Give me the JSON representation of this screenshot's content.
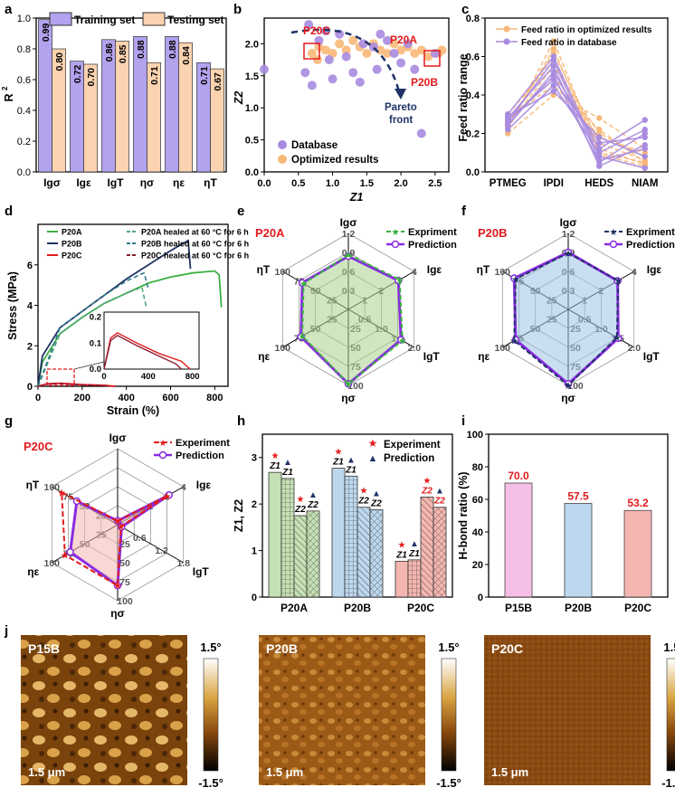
{
  "colors": {
    "purple": "#9370DB",
    "orange": "#F4B183",
    "navy": "#1F3366",
    "red": "#E31A1C",
    "green": "#3CB043",
    "light_green": "#C5E0B4",
    "light_blue": "#BDD7EE",
    "light_red": "#F4B6B0",
    "pink": "#F6BFE6"
  },
  "panel_labels": [
    "a",
    "b",
    "c",
    "d",
    "e",
    "f",
    "g",
    "h",
    "i",
    "j"
  ],
  "chart_data": [
    {
      "panel": "a",
      "type": "bar",
      "ylabel": "R",
      "ylabel_sup": "2",
      "categories": [
        "Igσ",
        "Igε",
        "IgT",
        "ησ",
        "ηε",
        "ηT"
      ],
      "category_italic": [
        "σ",
        "ε",
        "T",
        "σ",
        "ε",
        "T"
      ],
      "category_prefix": [
        "Ig",
        "Ig",
        "Ig",
        "η",
        "η",
        "η"
      ],
      "series": [
        {
          "name": "Training set",
          "values": [
            0.99,
            0.72,
            0.86,
            0.88,
            0.88,
            0.71
          ]
        },
        {
          "name": "Testing set",
          "values": [
            0.8,
            0.7,
            0.85,
            0.71,
            0.84,
            0.67
          ]
        }
      ],
      "value_labels": [
        [
          "0.99",
          "0.72",
          "0.86",
          "0.88",
          "0.88",
          "0.71"
        ],
        [
          "0.80",
          "0.70",
          "0.85",
          "0.71",
          "0.84",
          "0.67"
        ]
      ],
      "ylim": [
        0,
        1.0
      ],
      "yticks": [
        0,
        0.2,
        0.4,
        0.6,
        0.8,
        1.0
      ],
      "ytick_labels": [
        "0.0",
        "0.2",
        "0.4",
        "0.6",
        "0.8",
        "1.0"
      ]
    },
    {
      "panel": "b",
      "type": "scatter",
      "xlabel": "Z1",
      "ylabel": "Z2",
      "xlim": [
        0,
        2.7
      ],
      "ylim": [
        0,
        2.4
      ],
      "xticks": [
        "0.0",
        "0.5",
        "1.0",
        "1.5",
        "2.0",
        "2.5"
      ],
      "yticks": [
        "0.0",
        "0.5",
        "1.0",
        "1.5",
        "2.0"
      ],
      "series": [
        {
          "name": "Database",
          "points": [
            [
              0.0,
              1.6
            ],
            [
              0.6,
              1.55
            ],
            [
              0.7,
              1.35
            ],
            [
              0.8,
              2.05
            ],
            [
              0.65,
              2.3
            ],
            [
              0.9,
              2.2
            ],
            [
              0.95,
              1.75
            ],
            [
              1.0,
              1.45
            ],
            [
              1.1,
              2.15
            ],
            [
              1.2,
              1.8
            ],
            [
              1.3,
              1.55
            ],
            [
              1.4,
              1.4
            ],
            [
              1.45,
              2.0
            ],
            [
              1.6,
              1.95
            ],
            [
              1.65,
              1.6
            ],
            [
              1.8,
              2.05
            ],
            [
              1.9,
              1.85
            ],
            [
              2.0,
              1.7
            ],
            [
              2.1,
              2.0
            ],
            [
              2.2,
              1.6
            ],
            [
              2.3,
              0.6
            ],
            [
              2.5,
              1.85
            ],
            [
              1.7,
              2.15
            ]
          ]
        },
        {
          "name": "Optimized results",
          "points": [
            [
              0.7,
              1.85
            ],
            [
              0.78,
              1.75
            ],
            [
              0.8,
              1.95
            ],
            [
              0.9,
              1.9
            ],
            [
              1.0,
              1.85
            ],
            [
              1.1,
              2.0
            ],
            [
              1.2,
              1.9
            ],
            [
              1.3,
              2.05
            ],
            [
              1.4,
              1.95
            ],
            [
              1.5,
              1.85
            ],
            [
              1.6,
              2.0
            ],
            [
              1.7,
              1.9
            ],
            [
              1.8,
              1.85
            ],
            [
              1.9,
              2.0
            ],
            [
              2.0,
              1.9
            ],
            [
              2.1,
              1.95
            ],
            [
              2.2,
              1.85
            ],
            [
              2.3,
              1.9
            ],
            [
              2.4,
              1.8
            ],
            [
              2.55,
              1.85
            ],
            [
              2.6,
              1.9
            ]
          ]
        }
      ],
      "annotations": [
        "P20C",
        "P20A",
        "P20B",
        "Pareto",
        "front"
      ]
    },
    {
      "panel": "c",
      "type": "line",
      "ylabel": "Feed ratio range",
      "categories": [
        "PTMEG",
        "IPDI",
        "HEDS",
        "NIAM"
      ],
      "ylim": [
        0,
        0.8
      ],
      "yticks": [
        "0.0",
        "0.2",
        "0.4",
        "0.6",
        "0.8"
      ],
      "series": [
        {
          "name": "Feed ratio in optimized results",
          "lines": [
            [
              0.2,
              0.4,
              0.28,
              0.12
            ],
            [
              0.22,
              0.68,
              0.1,
              0.05
            ],
            [
              0.24,
              0.55,
              0.2,
              0.08
            ],
            [
              0.25,
              0.62,
              0.15,
              0.06
            ],
            [
              0.26,
              0.5,
              0.18,
              0.1
            ],
            [
              0.28,
              0.45,
              0.22,
              0.05
            ],
            [
              0.3,
              0.58,
              0.12,
              0.04
            ],
            [
              0.23,
              0.64,
              0.09,
              0.03
            ]
          ]
        },
        {
          "name": "Feed ratio in database",
          "lines": [
            [
              0.22,
              0.45,
              0.1,
              0.22
            ],
            [
              0.25,
              0.5,
              0.05,
              0.2
            ],
            [
              0.28,
              0.55,
              0.03,
              0.14
            ],
            [
              0.3,
              0.6,
              0.08,
              0.02
            ],
            [
              0.24,
              0.52,
              0.12,
              0.27
            ],
            [
              0.27,
              0.48,
              0.15,
              0.18
            ],
            [
              0.26,
              0.58,
              0.06,
              0.12
            ],
            [
              0.29,
              0.42,
              0.18,
              0.08
            ]
          ]
        }
      ]
    },
    {
      "panel": "d",
      "type": "line",
      "xlabel": "Strain (%)",
      "ylabel": "Stress (MPa)",
      "xlim": [
        0,
        860
      ],
      "ylim": [
        0,
        8
      ],
      "xticks": [
        "0",
        "200",
        "400",
        "600",
        "800"
      ],
      "yticks": [
        "0",
        "2",
        "4",
        "6"
      ],
      "legend": [
        "P20A",
        "P20B",
        "P20C",
        "P20A healed at 60 °C for 6 h",
        "P20B healed at 60 °C for 6 h",
        "P20C healed at 60 °C for 6 h"
      ],
      "series": [
        {
          "name": "P20A",
          "points": [
            [
              0,
              0
            ],
            [
              20,
              1.2
            ],
            [
              100,
              2.6
            ],
            [
              200,
              3.4
            ],
            [
              300,
              4.1
            ],
            [
              400,
              4.6
            ],
            [
              500,
              5.1
            ],
            [
              600,
              5.4
            ],
            [
              700,
              5.6
            ],
            [
              800,
              5.7
            ],
            [
              820,
              5.5
            ],
            [
              830,
              3.9
            ]
          ]
        },
        {
          "name": "P20B",
          "points": [
            [
              0,
              0
            ],
            [
              20,
              1.5
            ],
            [
              100,
              2.9
            ],
            [
              200,
              3.7
            ],
            [
              300,
              4.5
            ],
            [
              400,
              5.3
            ],
            [
              500,
              6.0
            ],
            [
              600,
              6.7
            ],
            [
              680,
              7.2
            ],
            [
              690,
              5.8
            ]
          ]
        },
        {
          "name": "P20C",
          "points": [
            [
              0,
              0
            ],
            [
              40,
              0.12
            ],
            [
              100,
              0.15
            ],
            [
              200,
              0.08
            ],
            [
              300,
              0.05
            ],
            [
              350,
              0
            ]
          ]
        },
        {
          "name": "P20A healed",
          "points": [
            [
              0,
              0
            ],
            [
              100,
              2.6
            ],
            [
              200,
              3.4
            ],
            [
              300,
              4.1
            ],
            [
              400,
              4.6
            ],
            [
              470,
              4.9
            ],
            [
              490,
              3.9
            ]
          ]
        },
        {
          "name": "P20B healed",
          "points": [
            [
              0,
              0
            ],
            [
              100,
              2.9
            ],
            [
              200,
              3.7
            ],
            [
              300,
              4.5
            ],
            [
              400,
              5.2
            ],
            [
              480,
              5.6
            ],
            [
              500,
              4.8
            ]
          ]
        },
        {
          "name": "P20C healed",
          "points": [
            [
              0,
              0
            ],
            [
              40,
              0.11
            ],
            [
              100,
              0.13
            ],
            [
              200,
              0.07
            ],
            [
              300,
              0.03
            ],
            [
              320,
              0
            ]
          ]
        }
      ],
      "inset": {
        "xticks": [
          "0",
          "400",
          "800"
        ],
        "yticks": [
          "0.0",
          "0.1",
          "0.2"
        ],
        "series": [
          {
            "name": "P20C",
            "points": [
              [
                0,
                0
              ],
              [
                60,
                0.12
              ],
              [
                120,
                0.14
              ],
              [
                300,
                0.1
              ],
              [
                500,
                0.06
              ],
              [
                700,
                0.03
              ],
              [
                780,
                0
              ]
            ]
          },
          {
            "name": "P20C healed",
            "points": [
              [
                0,
                0
              ],
              [
                60,
                0.11
              ],
              [
                120,
                0.13
              ],
              [
                300,
                0.09
              ],
              [
                500,
                0.05
              ],
              [
                650,
                0.02
              ],
              [
                700,
                0
              ]
            ]
          }
        ]
      }
    },
    {
      "panel": "e",
      "type": "radar",
      "title": "P20A",
      "axes": [
        "Igσ",
        "Igε",
        "IgT",
        "ησ",
        "ηε",
        "ηT"
      ],
      "legend": [
        "Expriment",
        "Prediction"
      ],
      "ring_labels": {
        "Igσ": [
          "0.3",
          "0.6",
          "0.9",
          "1.2"
        ],
        "Igε": [
          "1",
          "2",
          "3",
          "4"
        ],
        "IgT": [
          "0.5",
          "1.0",
          "1.5",
          "2.0"
        ],
        "ησ": [
          "25",
          "50",
          "75",
          "100"
        ],
        "ηε": [
          "25",
          "50",
          "75",
          "100"
        ],
        "ηT": [
          "25",
          "50",
          "75",
          "100"
        ]
      },
      "series": [
        {
          "name": "Expriment",
          "values": [
            0.72,
            0.78,
            0.82,
            0.98,
            0.7,
            0.68
          ]
        },
        {
          "name": "Prediction",
          "values": [
            0.7,
            0.76,
            0.8,
            0.98,
            0.72,
            0.7
          ]
        }
      ]
    },
    {
      "panel": "f",
      "type": "radar",
      "title": "P20B",
      "axes": [
        "Igσ",
        "Igε",
        "IgT",
        "ησ",
        "ηε",
        "ηT"
      ],
      "legend": [
        "Expriment",
        "Prediction"
      ],
      "ring_labels": {
        "Igσ": [
          "0.3",
          "0.6",
          "0.9",
          "1.2"
        ],
        "Igε": [
          "1",
          "2",
          "3",
          "4"
        ],
        "IgT": [
          "0.5",
          "1.0",
          "1.5",
          "2.0"
        ],
        "ησ": [
          "25",
          "50",
          "75",
          "100"
        ],
        "ηε": [
          "25",
          "50",
          "75",
          "100"
        ],
        "ηT": [
          "25",
          "50",
          "75",
          "100"
        ]
      },
      "series": [
        {
          "name": "Expriment",
          "values": [
            0.74,
            0.76,
            0.74,
            1.0,
            0.82,
            0.8
          ]
        },
        {
          "name": "Prediction",
          "values": [
            0.75,
            0.75,
            0.76,
            0.98,
            0.8,
            0.82
          ]
        }
      ]
    },
    {
      "panel": "g",
      "type": "radar",
      "title": "P20C",
      "axes": [
        "Igσ",
        "Igε",
        "IgT",
        "ησ",
        "ηε",
        "ηT"
      ],
      "legend": [
        "Experiment",
        "Prediction"
      ],
      "ring_labels": {
        "Igσ": [],
        "Igε": [
          "1",
          "2",
          "3",
          "4"
        ],
        "IgT": [
          "0.6",
          "1.2",
          "1.8"
        ],
        "ησ": [
          "25",
          "50",
          "75",
          "100"
        ],
        "ηε": [
          "25",
          "50",
          "75",
          "100"
        ],
        "ηT": [
          "25",
          "50",
          "75",
          "100"
        ]
      },
      "series": [
        {
          "name": "Experiment",
          "values": [
            0.05,
            0.75,
            0.05,
            0.8,
            0.8,
            0.85
          ]
        },
        {
          "name": "Prediction",
          "values": [
            0.05,
            0.78,
            0.06,
            0.8,
            0.72,
            0.62
          ]
        }
      ]
    },
    {
      "panel": "h",
      "type": "bar",
      "ylabel": "Z1, Z2",
      "categories": [
        "P20A",
        "P20B",
        "P20C"
      ],
      "legend": [
        "Experiment",
        "Prediction"
      ],
      "ylim": [
        0,
        3.5
      ],
      "yticks": [
        "0",
        "1",
        "2",
        "3"
      ],
      "series": [
        {
          "name": "Z1 Experiment",
          "values": [
            2.68,
            2.77,
            0.77
          ]
        },
        {
          "name": "Z1 Prediction",
          "values": [
            2.55,
            2.6,
            0.8
          ]
        },
        {
          "name": "Z2 Experiment",
          "values": [
            1.75,
            1.93,
            2.15
          ]
        },
        {
          "name": "Z2 Prediction",
          "values": [
            1.85,
            1.88,
            1.93
          ]
        }
      ],
      "bar_labels": [
        "Z1",
        "Z1",
        "Z2",
        "Z2"
      ]
    },
    {
      "panel": "i",
      "type": "bar",
      "ylabel": "H-bond ratio (%)",
      "categories": [
        "P15B",
        "P20B",
        "P20C"
      ],
      "values": [
        70.0,
        57.5,
        53.2
      ],
      "value_labels": [
        "70.0",
        "57.5",
        "53.2"
      ],
      "ylim": [
        0,
        100
      ],
      "yticks": [
        "0",
        "20",
        "40",
        "60",
        "80",
        "100"
      ]
    }
  ],
  "afm": {
    "images": [
      {
        "label": "P15B",
        "scale": "1.5 μm"
      },
      {
        "label": "P20B",
        "scale": "1.5 μm"
      },
      {
        "label": "P20C",
        "scale": "1.5 μm"
      }
    ],
    "colorbar_top": "1.5°",
    "colorbar_bottom": "-1.5°"
  }
}
